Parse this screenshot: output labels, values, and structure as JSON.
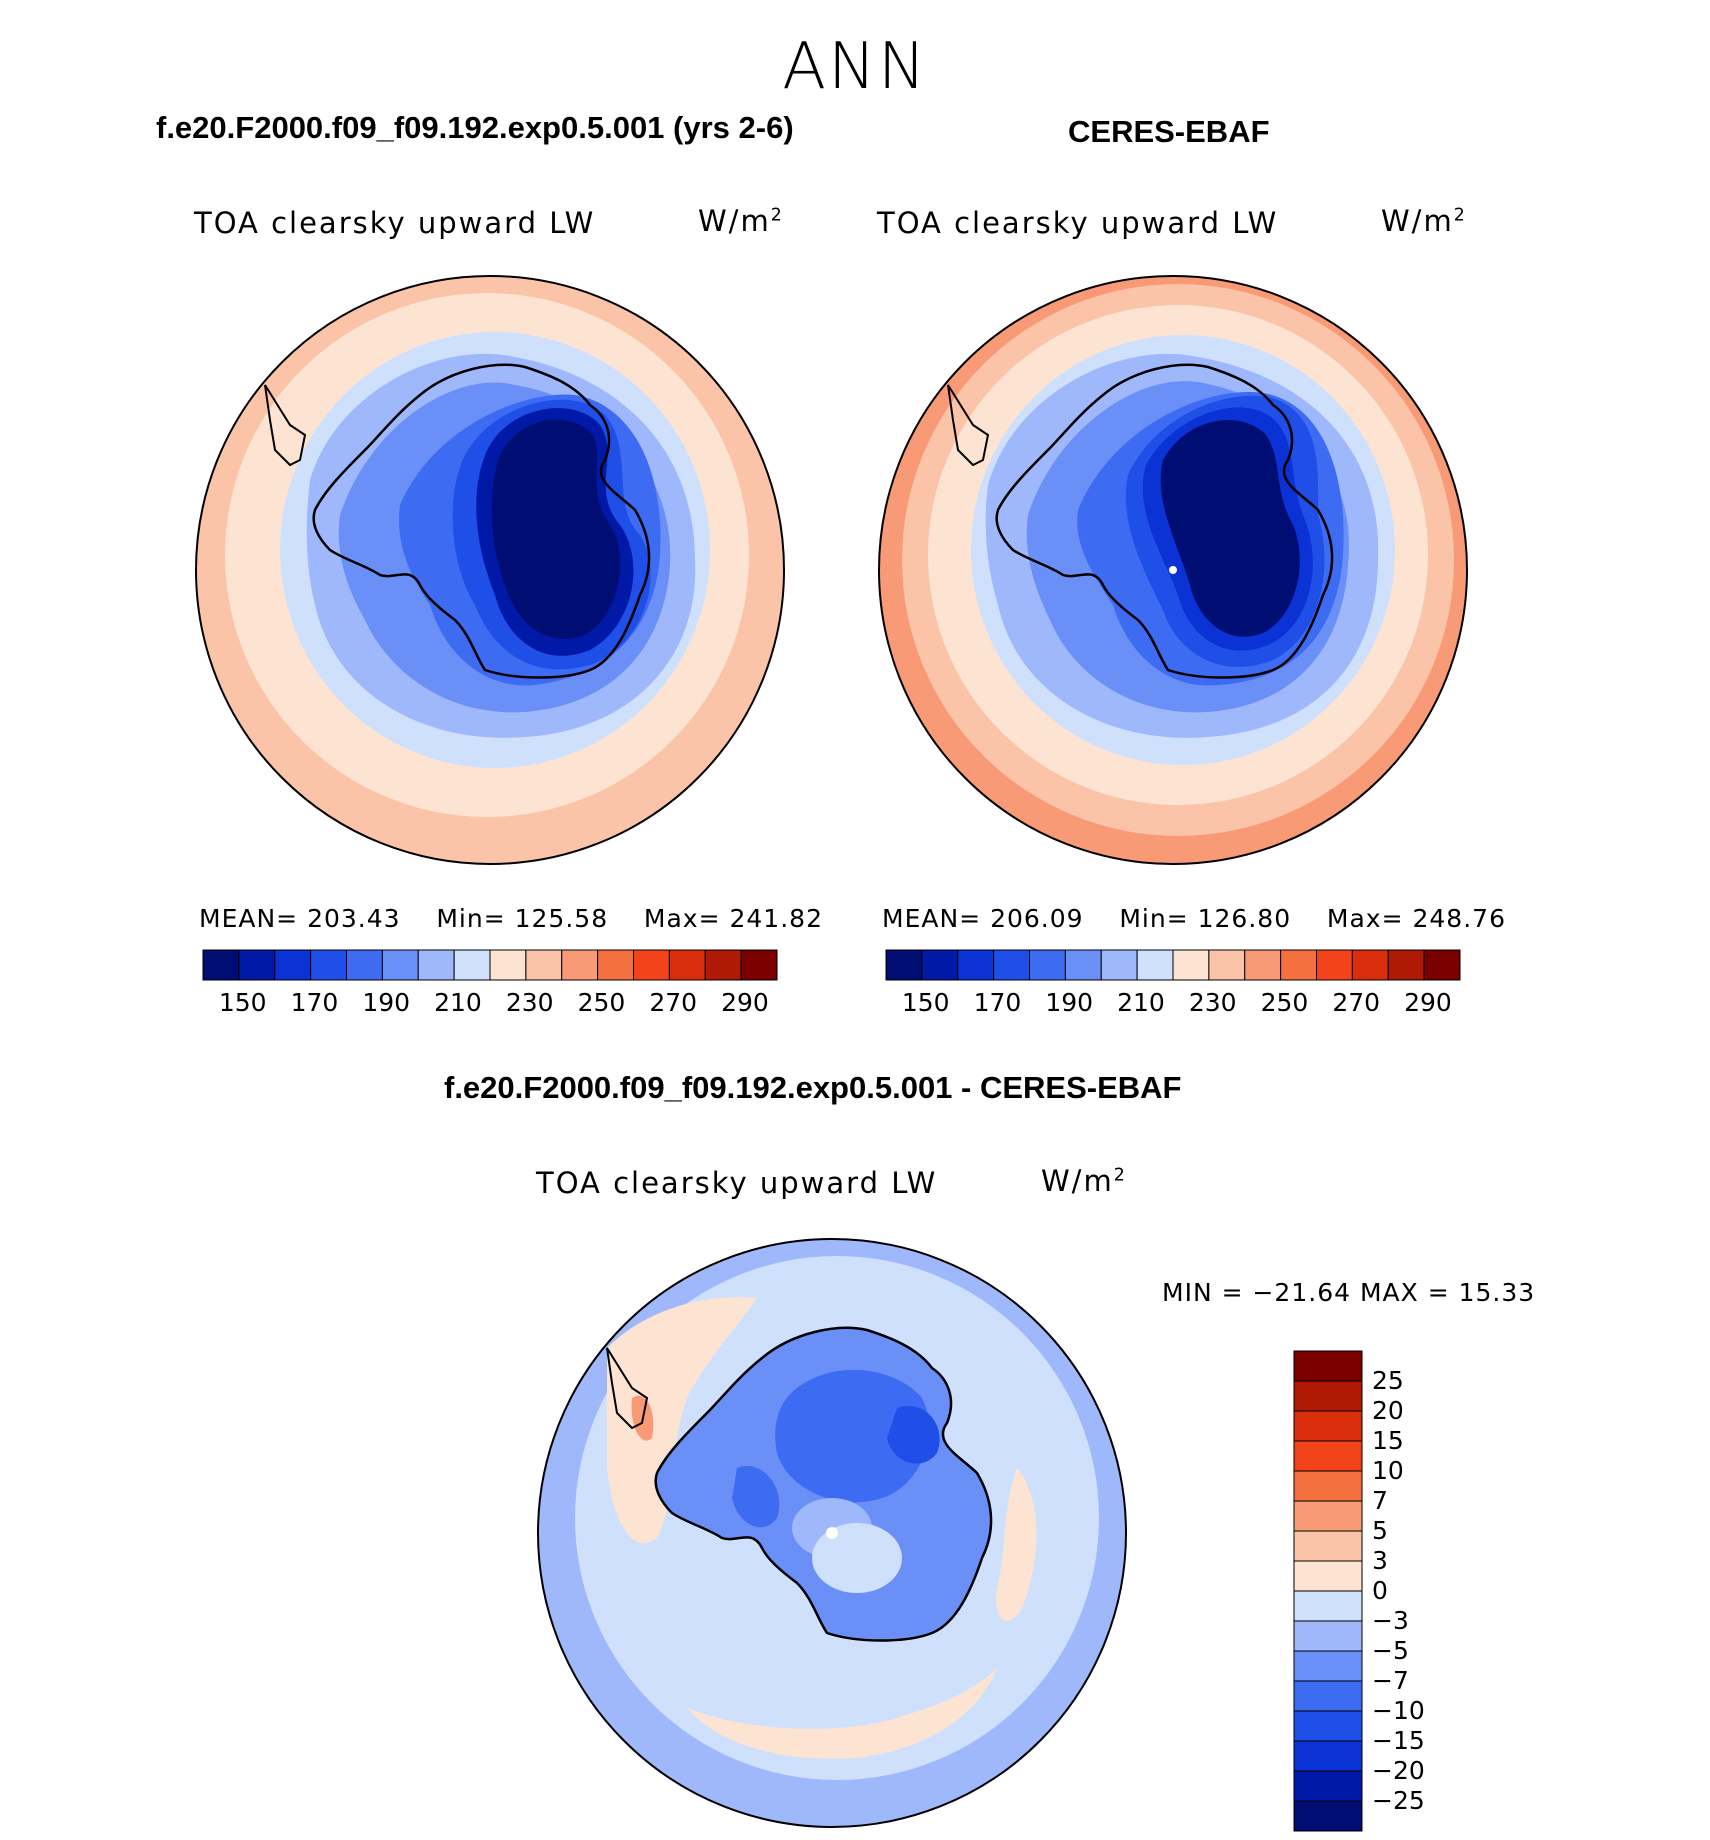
{
  "season": "ANN",
  "colors": {
    "abs_levels": [
      "#000d73",
      "#0019a6",
      "#0a32d4",
      "#1f4fe6",
      "#3d6bf2",
      "#6a8ff7",
      "#9fb8fb",
      "#cfe0fd",
      "#fde4d2",
      "#fbc3a8",
      "#f79a75",
      "#f4703f",
      "#f2431b",
      "#d92d0b",
      "#b01905",
      "#7a0000"
    ],
    "diff_levels": [
      "#000d73",
      "#0019a6",
      "#0a32d4",
      "#1f4fe6",
      "#3d6bf2",
      "#6a8ff7",
      "#9fb8fb",
      "#cfe0fd",
      "#fde4d2",
      "#fbc3a8",
      "#f79a75",
      "#f4703f",
      "#f2431b",
      "#d92d0b",
      "#b01905",
      "#7a0000"
    ]
  },
  "panels": {
    "model": {
      "case_title": "f.e20.F2000.f09_f09.192.exp0.5.001 (yrs 2-6)",
      "variable": "TOA clearsky upward LW",
      "units": "W/m",
      "units_sup": "2",
      "stats": {
        "mean_label": "MEAN=",
        "mean": "203.43",
        "min_label": "Min=",
        "min": "125.58",
        "max_label": "Max=",
        "max": "241.82"
      },
      "ticks": [
        "150",
        "170",
        "190",
        "210",
        "230",
        "250",
        "270",
        "290"
      ]
    },
    "obs": {
      "case_title": "CERES-EBAF",
      "variable": "TOA clearsky upward LW",
      "units": "W/m",
      "units_sup": "2",
      "stats": {
        "mean_label": "MEAN=",
        "mean": "206.09",
        "min_label": "Min=",
        "min": "126.80",
        "max_label": "Max=",
        "max": "248.76"
      },
      "ticks": [
        "150",
        "170",
        "190",
        "210",
        "230",
        "250",
        "270",
        "290"
      ]
    },
    "diff": {
      "case_title": "f.e20.F2000.f09_f09.192.exp0.5.001 - CERES-EBAF",
      "variable": "TOA clearsky upward LW",
      "units": "W/m",
      "units_sup": "2",
      "minmax": "MIN = −21.64 MAX =   15.33",
      "ticks": [
        "25",
        "20",
        "15",
        "10",
        "7",
        "5",
        "3",
        "0",
        "−3",
        "−5",
        "−7",
        "−10",
        "−15",
        "−20",
        "−25"
      ]
    }
  }
}
